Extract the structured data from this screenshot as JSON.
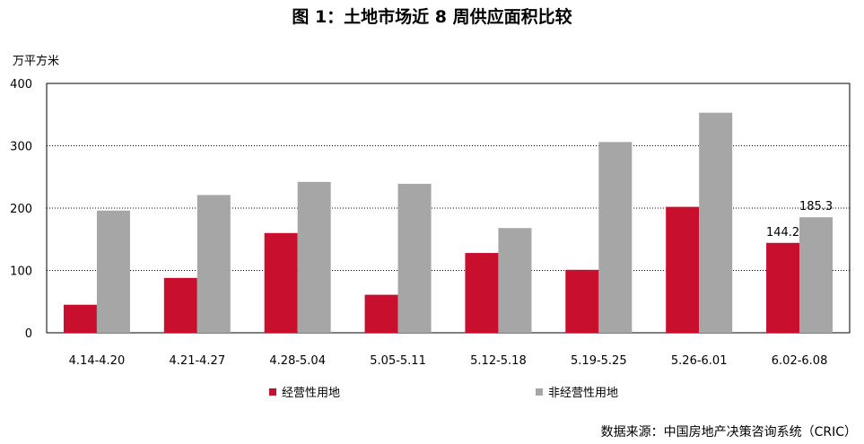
{
  "chart_data": {
    "type": "bar",
    "title": "图 1：土地市场近 8 周供应面积比较",
    "ylabel": "万平方米",
    "ylim": [
      0,
      400
    ],
    "yticks": [
      0,
      100,
      200,
      300,
      400
    ],
    "grid": true,
    "legend_position": "bottom-left",
    "categories": [
      "4.14-4.20",
      "4.21-4.27",
      "4.28-5.04",
      "5.05-5.11",
      "5.12-5.18",
      "5.19-5.25",
      "5.26-6.01",
      "6.02-6.08"
    ],
    "series": [
      {
        "name": "经营性用地",
        "color": "#C8102E",
        "values": [
          45,
          88,
          160,
          61,
          128,
          101,
          202,
          144.2
        ]
      },
      {
        "name": "非经营性用地",
        "color": "#A6A6A6",
        "values": [
          196,
          221,
          242,
          239,
          168,
          306,
          353,
          185.3
        ]
      }
    ],
    "annotations": [
      "144.2",
      "185.3"
    ],
    "source": "数据来源：中国房地产决策咨询系统（CRIC）"
  }
}
